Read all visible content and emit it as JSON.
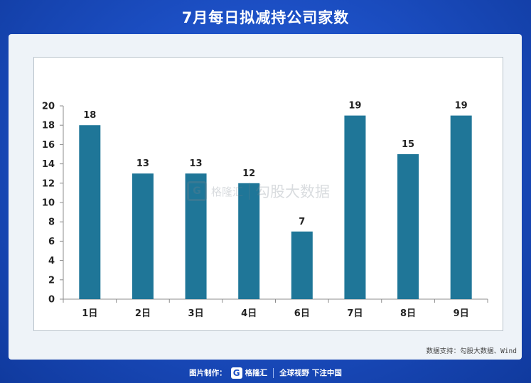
{
  "header": {
    "title": "7月每日拟减持公司家数"
  },
  "source_note": "数据支持：勾股大数据、Wind",
  "footer": {
    "made_by_label": "图片制作：",
    "brand": "格隆汇",
    "slogan": "全球视野 下注中国"
  },
  "watermark": {
    "brand": "格隆汇",
    "text": "勾股大数据"
  },
  "colors": {
    "bar": "#1f7698",
    "background": "#1c4fc4"
  },
  "chart_data": {
    "type": "bar",
    "categories": [
      "1日",
      "2日",
      "3日",
      "4日",
      "6日",
      "7日",
      "8日",
      "9日"
    ],
    "values": [
      18,
      13,
      13,
      12,
      7,
      19,
      15,
      19
    ],
    "title": "",
    "xlabel": "",
    "ylabel": "",
    "ylim": [
      0,
      20
    ],
    "yticks": [
      0,
      2,
      4,
      6,
      8,
      10,
      12,
      14,
      16,
      18,
      20
    ],
    "data_labels": true,
    "grid": false,
    "legend": "none"
  }
}
